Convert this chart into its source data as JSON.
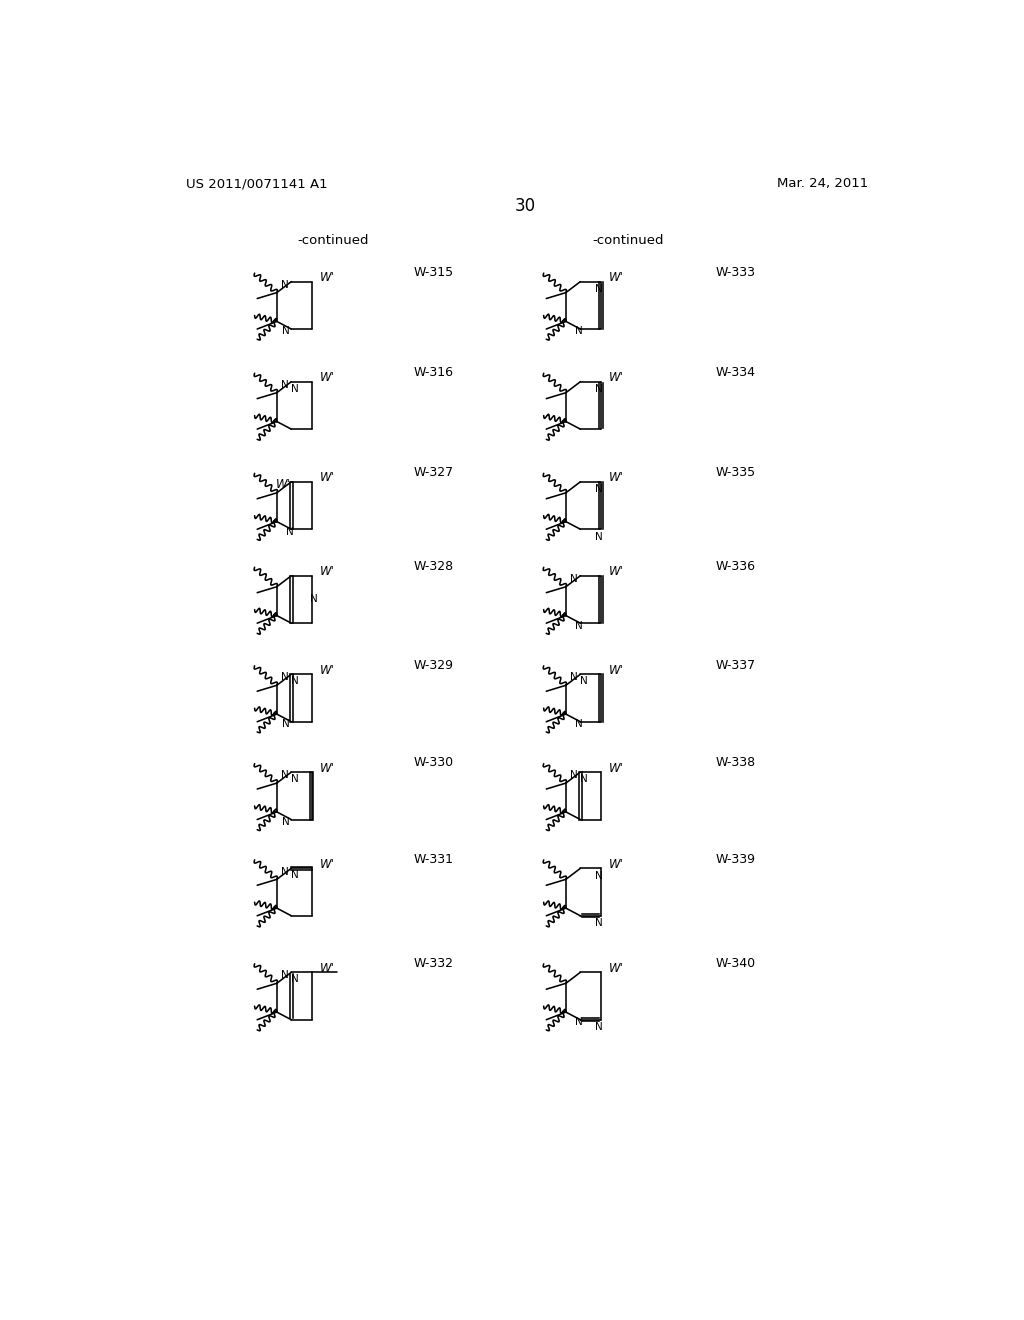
{
  "page_header_left": "US 2011/0071141 A1",
  "page_header_right": "Mar. 24, 2011",
  "page_number": "30",
  "continued_left": "-continued",
  "continued_right": "-continued",
  "left_col_labels": [
    "W-315",
    "W-316",
    "W-327",
    "W-328",
    "W-329",
    "W-330",
    "W-331",
    "W-332"
  ],
  "right_col_labels": [
    "W-333",
    "W-334",
    "W-335",
    "W-336",
    "W-337",
    "W-338",
    "W-339",
    "W-340"
  ],
  "background": "#ffffff",
  "text_color": "#000000",
  "left_variants": [
    0,
    1,
    2,
    3,
    4,
    5,
    6,
    7
  ],
  "right_variants": [
    8,
    9,
    10,
    11,
    12,
    13,
    14,
    15
  ]
}
